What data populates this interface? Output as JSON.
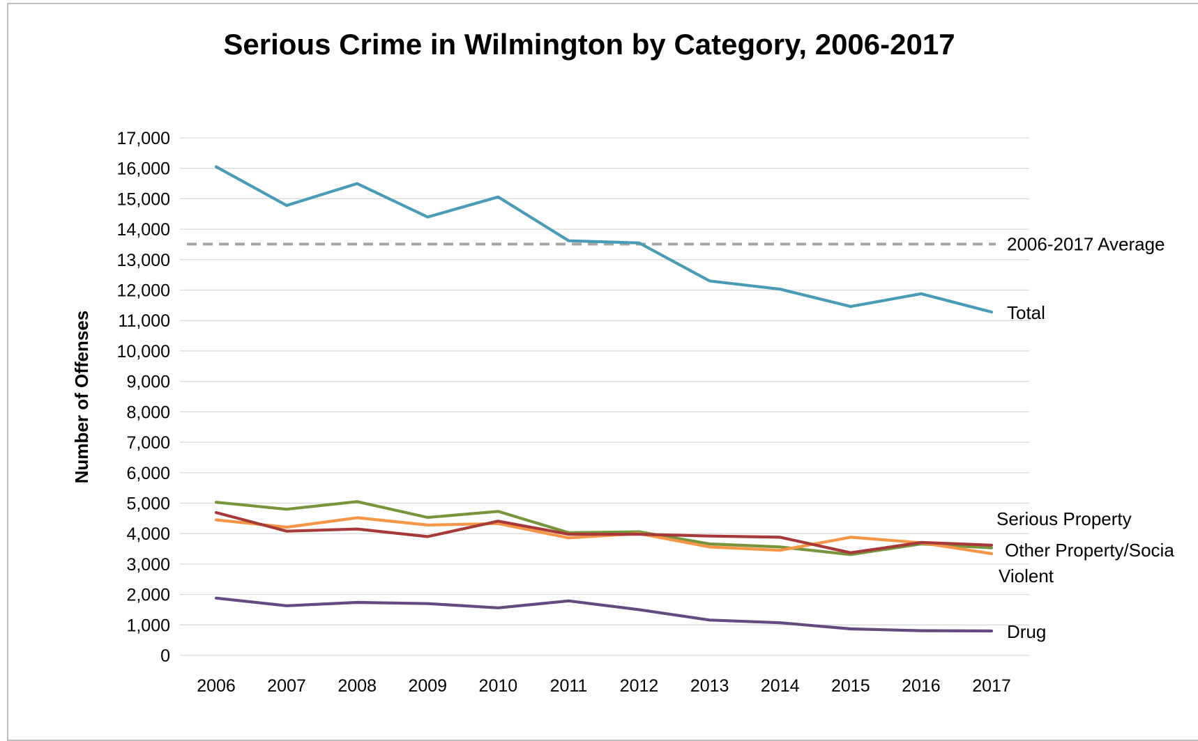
{
  "chart_data": {
    "type": "line",
    "title": "Serious Crime in Wilmington by Category, 2006-2017",
    "xlabel": "",
    "ylabel": "Number of Offenses",
    "ylim": [
      0,
      17000
    ],
    "yticks": [
      0,
      1000,
      2000,
      3000,
      4000,
      5000,
      6000,
      7000,
      8000,
      9000,
      10000,
      11000,
      12000,
      13000,
      14000,
      15000,
      16000,
      17000
    ],
    "ytick_labels": [
      "0",
      "1,000",
      "2,000",
      "3,000",
      "4,000",
      "5,000",
      "6,000",
      "7,000",
      "8,000",
      "9,000",
      "10,000",
      "11,000",
      "12,000",
      "13,000",
      "14,000",
      "15,000",
      "16,000",
      "17,000"
    ],
    "grid": "horizontal",
    "legend": "inline labels at right",
    "x": [
      "2006",
      "2007",
      "2008",
      "2009",
      "2010",
      "2011",
      "2012",
      "2013",
      "2014",
      "2015",
      "2016",
      "2017"
    ],
    "series": [
      {
        "name": "Total",
        "color": "#4a9bb5",
        "values": [
          16050,
          14780,
          15500,
          14400,
          15060,
          13620,
          13550,
          12300,
          12030,
          11460,
          11880,
          11280
        ]
      },
      {
        "name": "Serious Property",
        "color": "#77953d",
        "values": [
          5030,
          4800,
          5050,
          4530,
          4730,
          4030,
          4060,
          3660,
          3560,
          3310,
          3660,
          3530
        ]
      },
      {
        "name": "Other Property/Socia",
        "color": "#f79646",
        "values": [
          4450,
          4210,
          4520,
          4280,
          4330,
          3860,
          4000,
          3560,
          3450,
          3880,
          3700,
          3340
        ]
      },
      {
        "name": "Violent",
        "color": "#a73a38",
        "values": [
          4690,
          4080,
          4150,
          3900,
          4410,
          3980,
          3980,
          3920,
          3880,
          3370,
          3710,
          3620
        ]
      },
      {
        "name": "Drug",
        "color": "#654a7f",
        "values": [
          1880,
          1630,
          1740,
          1700,
          1560,
          1790,
          1500,
          1160,
          1070,
          870,
          810,
          800
        ]
      }
    ],
    "reference_lines": [
      {
        "name": "2006-2017 Average",
        "value": 13510,
        "color": "#a6a6a6",
        "style": "dashed"
      }
    ]
  }
}
